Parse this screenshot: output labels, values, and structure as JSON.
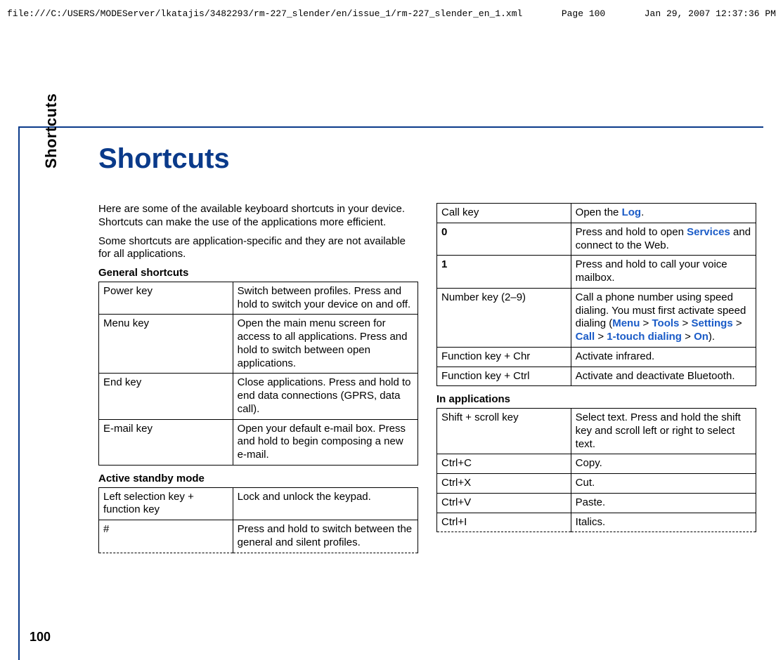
{
  "header": {
    "path": "file:///C:/USERS/MODEServer/lkatajis/3482293/rm-227_slender/en/issue_1/rm-227_slender_en_1.xml",
    "page": "Page 100",
    "timestamp": "Jan 29, 2007 12:37:36 PM"
  },
  "sideTab": {
    "label": "Shortcuts",
    "pageNumber": "100"
  },
  "title": "Shortcuts",
  "intro1": "Here are some of the available keyboard shortcuts in your device. Shortcuts can make the use of the applications more efficient.",
  "intro2": "Some shortcuts are application-specific and they are not available for all applications.",
  "subheads": {
    "general": "General shortcuts",
    "standby": "Active standby mode",
    "inApps": "In applications"
  },
  "tables": {
    "general": [
      {
        "k": "Power key",
        "v": "Switch between profiles. Press and hold to switch your device on and off."
      },
      {
        "k": "Menu key",
        "v": "Open the main menu screen for access to all applications. Press and hold to switch between open applications."
      },
      {
        "k": "End key",
        "v": "Close applications. Press and hold to end data connections (GPRS, data call)."
      },
      {
        "k": "E-mail key",
        "v": "Open your default e-mail box. Press and hold to begin composing a new e-mail."
      }
    ],
    "standby": [
      {
        "k": "Left selection key + function key",
        "v": "Lock and unlock the keypad."
      },
      {
        "k": "#",
        "v": "Press and hold to switch between the general and silent profiles.",
        "dashed": true
      }
    ],
    "right1": [
      {
        "k": "Call key",
        "v_pre": "Open the ",
        "link": "Log",
        "v_post": "."
      },
      {
        "k": "0",
        "kBold": true,
        "v_pre": "Press and hold to open ",
        "link": "Services",
        "v_post": " and connect to the Web."
      },
      {
        "k": "1",
        "kBold": true,
        "v": "Press and hold to call your voice mailbox."
      },
      {
        "k": "Number key (2–9)",
        "v_pre": "Call a phone number using speed dialing. You must first activate speed dialing (",
        "nav": [
          "Menu",
          "Tools",
          "Settings",
          "Call",
          "1-touch dialing",
          "On"
        ],
        "v_post": ")."
      },
      {
        "k": "Function key + Chr",
        "v": "Activate infrared."
      },
      {
        "k": "Function key + Ctrl",
        "v": "Activate and deactivate Bluetooth."
      }
    ],
    "inApps": [
      {
        "k": "Shift + scroll key",
        "v": "Select text. Press and hold the shift key and scroll left or right to select text."
      },
      {
        "k": "Ctrl+C",
        "v": "Copy."
      },
      {
        "k": "Ctrl+X",
        "v": "Cut."
      },
      {
        "k": "Ctrl+V",
        "v": "Paste."
      },
      {
        "k": "Ctrl+I",
        "v": "Italics.",
        "dashed": true
      }
    ]
  },
  "navSep": " > "
}
